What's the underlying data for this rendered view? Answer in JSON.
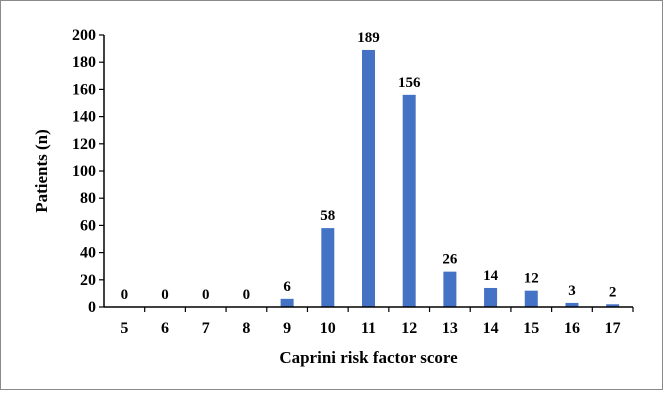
{
  "chart_data": {
    "type": "bar",
    "title": "",
    "xlabel": "Caprini risk factor score",
    "ylabel": "Patients (n)",
    "categories": [
      "5",
      "6",
      "7",
      "8",
      "9",
      "10",
      "11",
      "12",
      "13",
      "14",
      "15",
      "16",
      "17"
    ],
    "values": [
      0,
      0,
      0,
      0,
      6,
      58,
      189,
      156,
      26,
      14,
      12,
      3,
      2
    ],
    "data_labels": [
      "0",
      "0",
      "0",
      "0",
      "6",
      "58",
      "189",
      "156",
      "26",
      "14",
      "12",
      "3",
      "2"
    ],
    "ylim": [
      0,
      200
    ],
    "yticks": [
      "0",
      "20",
      "40",
      "60",
      "80",
      "100",
      "120",
      "140",
      "160",
      "180",
      "200"
    ],
    "grid": false,
    "legend": "none",
    "bar_color": "#4472C4"
  }
}
